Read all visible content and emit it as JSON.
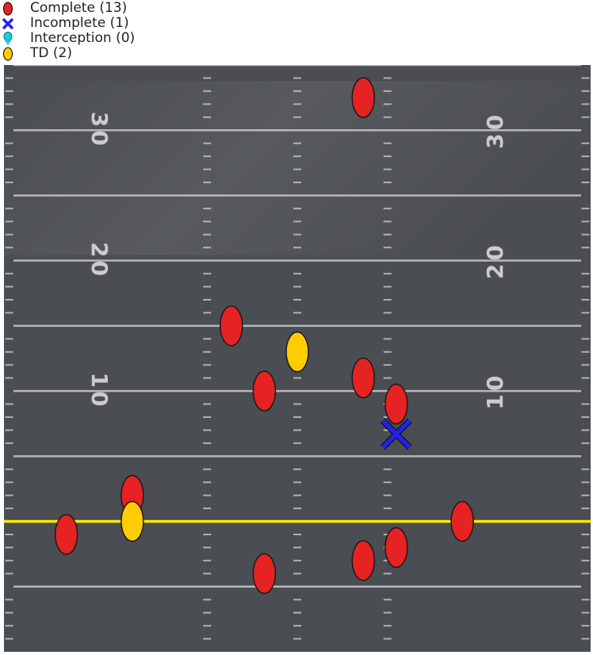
{
  "chart_data": {
    "type": "scatter",
    "title": "",
    "legend": {
      "placement": "top-left",
      "entries": [
        {
          "key": "complete",
          "label": "Complete (13)",
          "marker": "oval",
          "color": "#e62222"
        },
        {
          "key": "incomplete",
          "label": "Incomplete (1)",
          "marker": "x",
          "color": "#2222ee"
        },
        {
          "key": "interception",
          "label": "Interception (0)",
          "marker": "oval-arrow",
          "color": "#1ecbe1"
        },
        {
          "key": "td",
          "label": "TD (2)",
          "marker": "oval",
          "color": "#ffcc00"
        }
      ]
    },
    "field": {
      "background": "#4a4d52",
      "line_color": "#c9cacc",
      "line_of_scrimmage_color": "#ffea00",
      "x_range": [
        -26.67,
        26.67
      ],
      "y_range": [
        -10,
        35
      ],
      "line_of_scrimmage": 0,
      "yard_lines": [
        -5,
        0,
        5,
        10,
        15,
        20,
        25,
        30,
        35
      ],
      "hash_columns": [
        -26.2,
        -8.2,
        0,
        8.2,
        26.2
      ],
      "number_labels": [
        {
          "text": "30",
          "y": 30
        },
        {
          "text": "20",
          "y": 20
        },
        {
          "text": "10",
          "y": 10
        }
      ]
    },
    "series": [
      {
        "name": "Complete (13)",
        "key": "complete",
        "color": "#e62222",
        "points": [
          {
            "x": 6.0,
            "y": 32.5
          },
          {
            "x": -6.0,
            "y": 15.0
          },
          {
            "x": -3.0,
            "y": 10.0
          },
          {
            "x": 6.0,
            "y": 11.0
          },
          {
            "x": 9.0,
            "y": 9.0
          },
          {
            "x": -15.0,
            "y": 2.0
          },
          {
            "x": -21.0,
            "y": -1.0
          },
          {
            "x": 15.0,
            "y": 0.0
          },
          {
            "x": 9.0,
            "y": -2.0
          },
          {
            "x": 6.0,
            "y": -3.0
          },
          {
            "x": -3.0,
            "y": -4.0
          }
        ]
      },
      {
        "name": "Incomplete (1)",
        "key": "incomplete",
        "color": "#2222ee",
        "points": [
          {
            "x": 9.0,
            "y": 6.7
          }
        ]
      },
      {
        "name": "Interception (0)",
        "key": "interception",
        "color": "#1ecbe1",
        "points": []
      },
      {
        "name": "TD (2)",
        "key": "td",
        "color": "#ffcc00",
        "points": [
          {
            "x": 0.0,
            "y": 13.0
          },
          {
            "x": -15.0,
            "y": 0.0
          }
        ]
      }
    ]
  }
}
